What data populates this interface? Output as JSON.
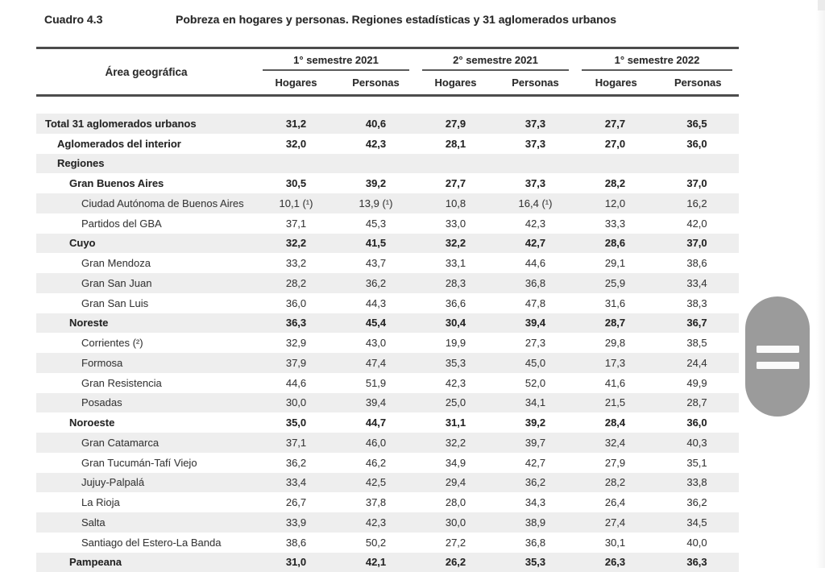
{
  "page": {
    "label": "Cuadro 4.3",
    "title": "Pobreza en hogares y personas. Regiones estadísticas y 31 aglomerados urbanos"
  },
  "table": {
    "area_header": "Área geográfica",
    "col_groups": [
      {
        "label": "1° semestre 2021"
      },
      {
        "label": "2° semestre 2021"
      },
      {
        "label": "1° semestre 2022"
      }
    ],
    "sub_headers": [
      "Hogares",
      "Personas"
    ],
    "rows": [
      {
        "name": "Total 31 aglomerados urbanos",
        "indent": 0,
        "bold": true,
        "shaded": true,
        "values": [
          "31,2",
          "40,6",
          "27,9",
          "37,3",
          "27,7",
          "36,5"
        ]
      },
      {
        "name": "Aglomerados del interior",
        "indent": 1,
        "bold": true,
        "shaded": false,
        "values": [
          "32,0",
          "42,3",
          "28,1",
          "37,3",
          "27,0",
          "36,0"
        ]
      },
      {
        "name": "Regiones",
        "indent": 1,
        "bold": true,
        "shaded": true,
        "values": [
          "",
          "",
          "",
          "",
          "",
          ""
        ]
      },
      {
        "name": "Gran Buenos Aires",
        "indent": 2,
        "bold": true,
        "shaded": false,
        "values": [
          "30,5",
          "39,2",
          "27,7",
          "37,3",
          "28,2",
          "37,0"
        ]
      },
      {
        "name": "Ciudad Autónoma de Buenos Aires",
        "indent": 3,
        "bold": false,
        "shaded": true,
        "values": [
          "10,1 (¹)",
          "13,9 (¹)",
          "10,8",
          "16,4 (¹)",
          "12,0",
          "16,2"
        ]
      },
      {
        "name": "Partidos del GBA",
        "indent": 3,
        "bold": false,
        "shaded": false,
        "values": [
          "37,1",
          "45,3",
          "33,0",
          "42,3",
          "33,3",
          "42,0"
        ]
      },
      {
        "name": "Cuyo",
        "indent": 2,
        "bold": true,
        "shaded": true,
        "values": [
          "32,2",
          "41,5",
          "32,2",
          "42,7",
          "28,6",
          "37,0"
        ]
      },
      {
        "name": "Gran Mendoza",
        "indent": 3,
        "bold": false,
        "shaded": false,
        "values": [
          "33,2",
          "43,7",
          "33,1",
          "44,6",
          "29,1",
          "38,6"
        ]
      },
      {
        "name": "Gran San Juan",
        "indent": 3,
        "bold": false,
        "shaded": true,
        "values": [
          "28,2",
          "36,2",
          "28,3",
          "36,8",
          "25,9",
          "33,4"
        ]
      },
      {
        "name": "Gran San Luis",
        "indent": 3,
        "bold": false,
        "shaded": false,
        "values": [
          "36,0",
          "44,3",
          "36,6",
          "47,8",
          "31,6",
          "38,3"
        ]
      },
      {
        "name": "Noreste",
        "indent": 2,
        "bold": true,
        "shaded": true,
        "values": [
          "36,3",
          "45,4",
          "30,4",
          "39,4",
          "28,7",
          "36,7"
        ]
      },
      {
        "name": "Corrientes (²)",
        "indent": 3,
        "bold": false,
        "shaded": false,
        "values": [
          "32,9",
          "43,0",
          "19,9",
          "27,3",
          "29,8",
          "38,5"
        ]
      },
      {
        "name": "Formosa",
        "indent": 3,
        "bold": false,
        "shaded": true,
        "values": [
          "37,9",
          "47,4",
          "35,3",
          "45,0",
          "17,3",
          "24,4"
        ]
      },
      {
        "name": "Gran Resistencia",
        "indent": 3,
        "bold": false,
        "shaded": false,
        "values": [
          "44,6",
          "51,9",
          "42,3",
          "52,0",
          "41,6",
          "49,9"
        ]
      },
      {
        "name": "Posadas",
        "indent": 3,
        "bold": false,
        "shaded": true,
        "values": [
          "30,0",
          "39,4",
          "25,0",
          "34,1",
          "21,5",
          "28,7"
        ]
      },
      {
        "name": "Noroeste",
        "indent": 2,
        "bold": true,
        "shaded": false,
        "values": [
          "35,0",
          "44,7",
          "31,1",
          "39,2",
          "28,4",
          "36,0"
        ]
      },
      {
        "name": "Gran Catamarca",
        "indent": 3,
        "bold": false,
        "shaded": true,
        "values": [
          "37,1",
          "46,0",
          "32,2",
          "39,7",
          "32,4",
          "40,3"
        ]
      },
      {
        "name": "Gran Tucumán-Tafí Viejo",
        "indent": 3,
        "bold": false,
        "shaded": false,
        "values": [
          "36,2",
          "46,2",
          "34,9",
          "42,7",
          "27,9",
          "35,1"
        ]
      },
      {
        "name": "Jujuy-Palpalá",
        "indent": 3,
        "bold": false,
        "shaded": true,
        "values": [
          "33,4",
          "42,5",
          "29,4",
          "36,2",
          "28,2",
          "33,8"
        ]
      },
      {
        "name": "La Rioja",
        "indent": 3,
        "bold": false,
        "shaded": false,
        "values": [
          "26,7",
          "37,8",
          "28,0",
          "34,3",
          "26,4",
          "36,2"
        ]
      },
      {
        "name": "Salta",
        "indent": 3,
        "bold": false,
        "shaded": true,
        "values": [
          "33,9",
          "42,3",
          "30,0",
          "38,9",
          "27,4",
          "34,5"
        ]
      },
      {
        "name": "Santiago del Estero-La Banda",
        "indent": 3,
        "bold": false,
        "shaded": false,
        "values": [
          "38,6",
          "50,2",
          "27,2",
          "36,8",
          "30,1",
          "40,0"
        ]
      },
      {
        "name": "Pampeana",
        "indent": 2,
        "bold": true,
        "shaded": true,
        "values": [
          "31,0",
          "42,1",
          "26,2",
          "35,3",
          "26,3",
          "36,3"
        ]
      }
    ]
  }
}
